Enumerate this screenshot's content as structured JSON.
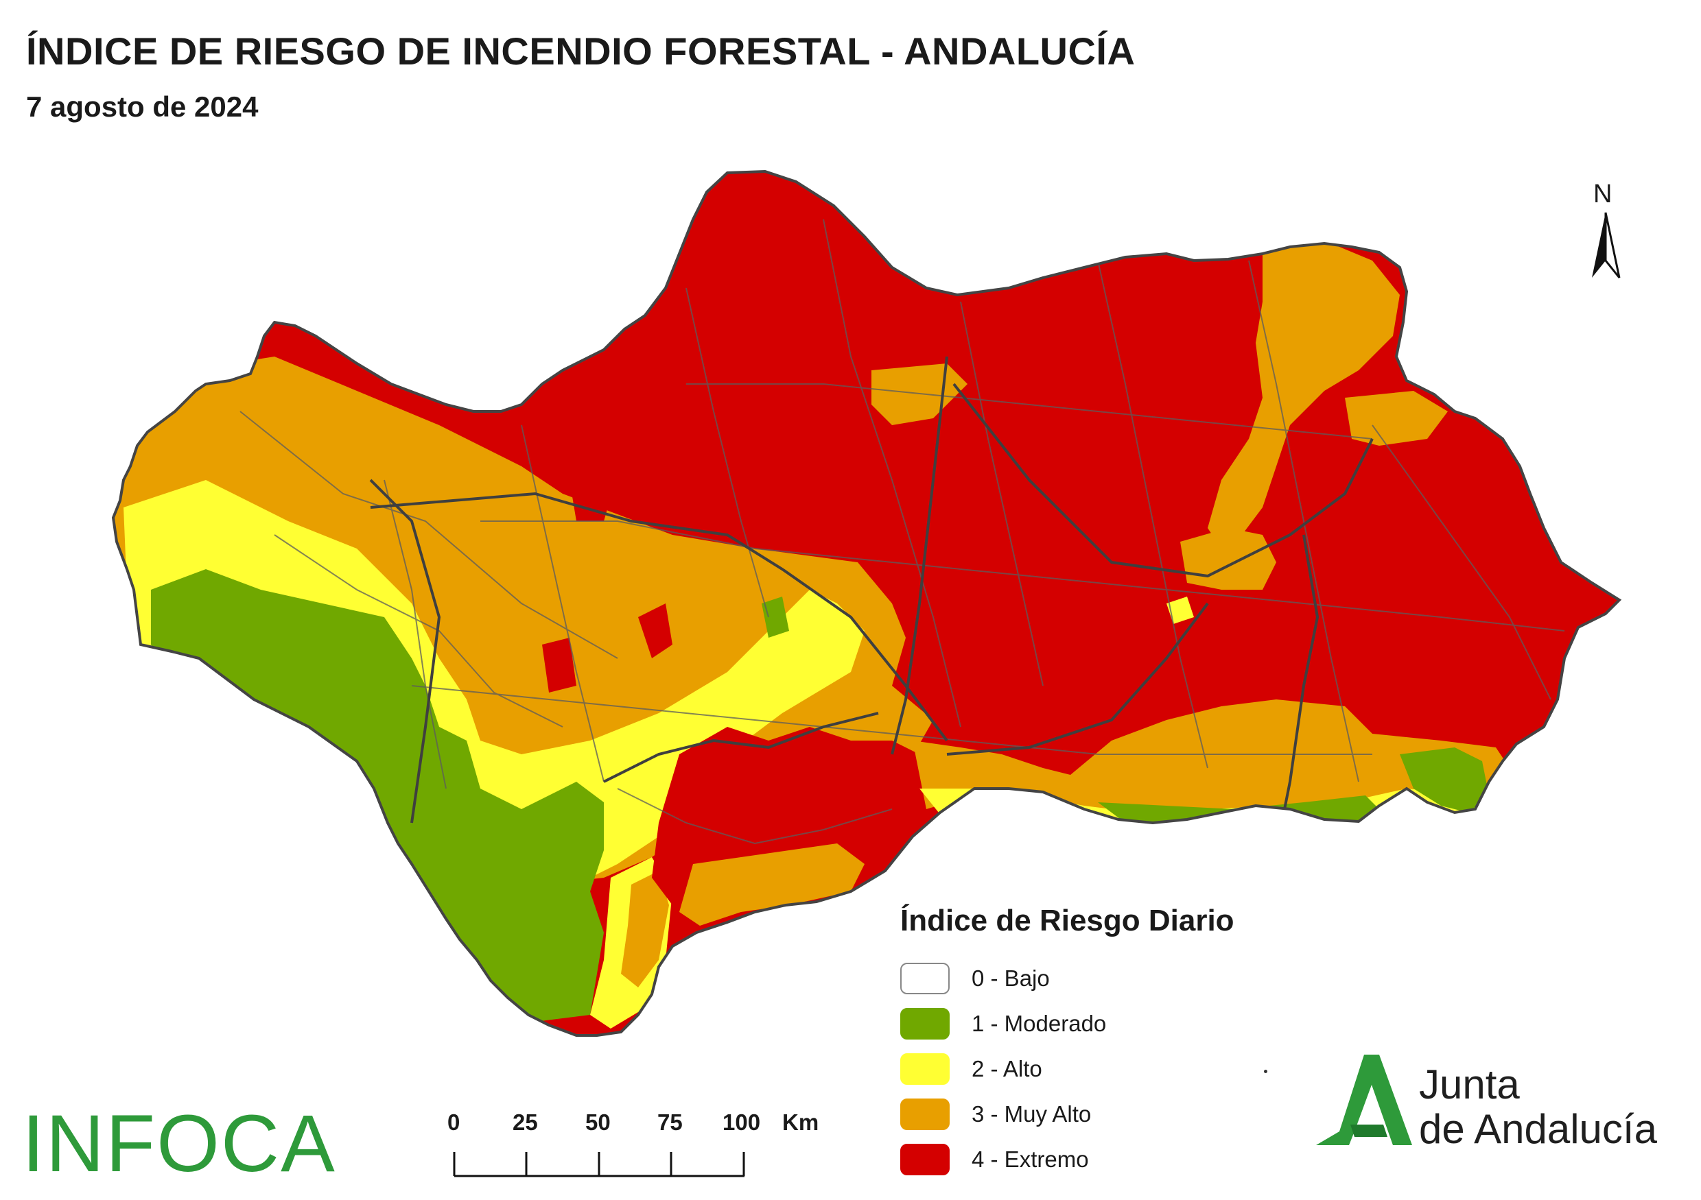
{
  "header": {
    "title": "ÍNDICE DE RIESGO DE INCENDIO FORESTAL - ANDALUCÍA",
    "date": "7 agosto de 2024"
  },
  "north_arrow": {
    "label": "N"
  },
  "legend": {
    "title": "Índice de Riesgo Diario",
    "items": [
      {
        "label": "0 - Bajo",
        "color": "#ffffff"
      },
      {
        "label": "1 - Moderado",
        "color": "#70a800"
      },
      {
        "label": "2 - Alto",
        "color": "#ffff33"
      },
      {
        "label": "3 - Muy Alto",
        "color": "#e89f00"
      },
      {
        "label": "4 - Extremo",
        "color": "#d40000"
      }
    ]
  },
  "scale_bar": {
    "ticks": [
      "0",
      "25",
      "50",
      "75",
      "100"
    ],
    "unit": "Km"
  },
  "logos": {
    "left": "INFOCA",
    "right_line1": "Junta",
    "right_line2": "de Andalucía"
  },
  "colors": {
    "extremo": "#d40000",
    "muy_alto": "#e89f00",
    "alto": "#ffff33",
    "moderado": "#70a800",
    "border": "#555555",
    "brand_green": "#2e9a3a"
  }
}
